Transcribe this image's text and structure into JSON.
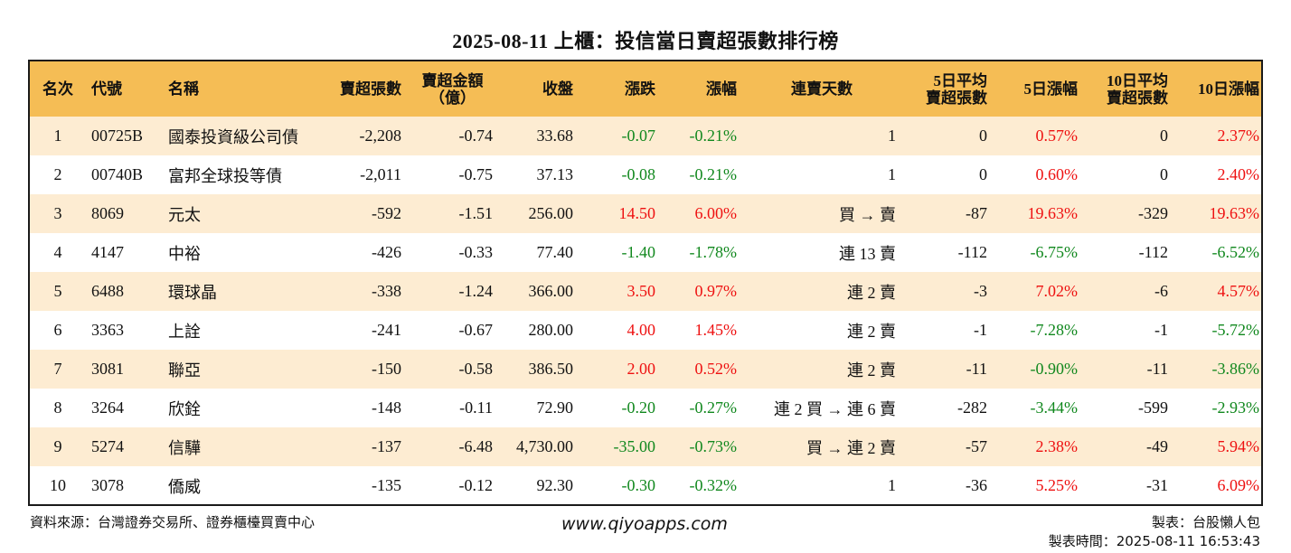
{
  "title": "2025-08-11 上櫃：投信當日賣超張數排行榜",
  "headers": {
    "rank": "名次",
    "code": "代號",
    "name": "名稱",
    "sell_lots": "賣超張數",
    "sell_amount": [
      "賣超金額",
      "（億）"
    ],
    "close": "收盤",
    "change": "漲跌",
    "change_pct": "漲幅",
    "streak": "連賣天數",
    "avg5": [
      "5日平均",
      "賣超張數"
    ],
    "pct5": "5日漲幅",
    "avg10": [
      "10日平均",
      "賣超張數"
    ],
    "pct10": "10日漲幅"
  },
  "rows": [
    {
      "rank": "1",
      "code": "00725B",
      "name": "國泰投資級公司債",
      "sell_lots": "-2,208",
      "sell_amount": "-0.74",
      "close": "33.68",
      "change": "-0.07",
      "change_pct": "-0.21%",
      "streak": "1",
      "avg5": "0",
      "pct5": "0.57%",
      "avg10": "0",
      "pct10": "2.37%"
    },
    {
      "rank": "2",
      "code": "00740B",
      "name": "富邦全球投等債",
      "sell_lots": "-2,011",
      "sell_amount": "-0.75",
      "close": "37.13",
      "change": "-0.08",
      "change_pct": "-0.21%",
      "streak": "1",
      "avg5": "0",
      "pct5": "0.60%",
      "avg10": "0",
      "pct10": "2.40%"
    },
    {
      "rank": "3",
      "code": "8069",
      "name": "元太",
      "sell_lots": "-592",
      "sell_amount": "-1.51",
      "close": "256.00",
      "change": "14.50",
      "change_pct": "6.00%",
      "streak": "買 → 賣",
      "avg5": "-87",
      "pct5": "19.63%",
      "avg10": "-329",
      "pct10": "19.63%"
    },
    {
      "rank": "4",
      "code": "4147",
      "name": "中裕",
      "sell_lots": "-426",
      "sell_amount": "-0.33",
      "close": "77.40",
      "change": "-1.40",
      "change_pct": "-1.78%",
      "streak": "連 13 賣",
      "avg5": "-112",
      "pct5": "-6.75%",
      "avg10": "-112",
      "pct10": "-6.52%"
    },
    {
      "rank": "5",
      "code": "6488",
      "name": "環球晶",
      "sell_lots": "-338",
      "sell_amount": "-1.24",
      "close": "366.00",
      "change": "3.50",
      "change_pct": "0.97%",
      "streak": "連 2 賣",
      "avg5": "-3",
      "pct5": "7.02%",
      "avg10": "-6",
      "pct10": "4.57%"
    },
    {
      "rank": "6",
      "code": "3363",
      "name": "上詮",
      "sell_lots": "-241",
      "sell_amount": "-0.67",
      "close": "280.00",
      "change": "4.00",
      "change_pct": "1.45%",
      "streak": "連 2 賣",
      "avg5": "-1",
      "pct5": "-7.28%",
      "avg10": "-1",
      "pct10": "-5.72%"
    },
    {
      "rank": "7",
      "code": "3081",
      "name": "聯亞",
      "sell_lots": "-150",
      "sell_amount": "-0.58",
      "close": "386.50",
      "change": "2.00",
      "change_pct": "0.52%",
      "streak": "連 2 賣",
      "avg5": "-11",
      "pct5": "-0.90%",
      "avg10": "-11",
      "pct10": "-3.86%"
    },
    {
      "rank": "8",
      "code": "3264",
      "name": "欣銓",
      "sell_lots": "-148",
      "sell_amount": "-0.11",
      "close": "72.90",
      "change": "-0.20",
      "change_pct": "-0.27%",
      "streak": "連 2 買 → 連 6 賣",
      "avg5": "-282",
      "pct5": "-3.44%",
      "avg10": "-599",
      "pct10": "-2.93%"
    },
    {
      "rank": "9",
      "code": "5274",
      "name": "信驊",
      "sell_lots": "-137",
      "sell_amount": "-6.48",
      "close": "4,730.00",
      "change": "-35.00",
      "change_pct": "-0.73%",
      "streak": "買 → 連 2 賣",
      "avg5": "-57",
      "pct5": "2.38%",
      "avg10": "-49",
      "pct10": "5.94%"
    },
    {
      "rank": "10",
      "code": "3078",
      "name": "僑威",
      "sell_lots": "-135",
      "sell_amount": "-0.12",
      "close": "92.30",
      "change": "-0.30",
      "change_pct": "-0.32%",
      "streak": "1",
      "avg5": "-36",
      "pct5": "5.25%",
      "avg10": "-31",
      "pct10": "6.09%"
    }
  ],
  "colors": {
    "header_bg": "#f5bd55",
    "stripe": "#fdecd2",
    "positive": "#ee1111",
    "negative": "#11881e"
  },
  "footer": {
    "source": "資料來源：台灣證券交易所、證券櫃檯買賣中心",
    "site": "www.qiyoapps.com",
    "maker": "製表：台股懶人包",
    "time": "製表時間：2025-08-11 16:53:43"
  }
}
